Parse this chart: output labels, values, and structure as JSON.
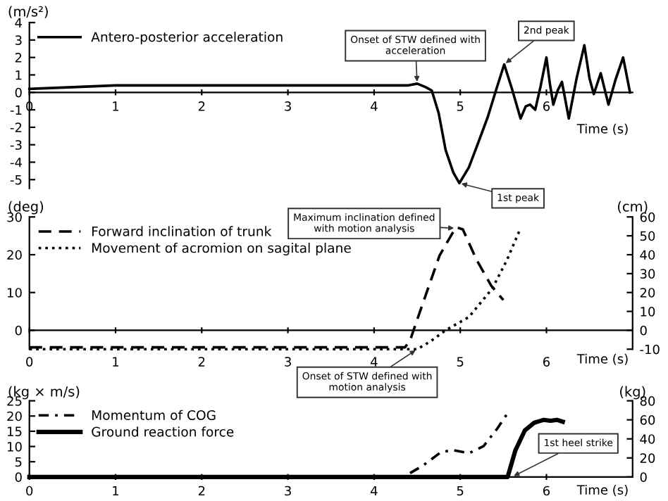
{
  "chart_data": [
    {
      "type": "line",
      "ylabel": "(m/s²)",
      "xlabel": "Time (s)",
      "xlim": [
        0,
        7
      ],
      "xticks": [
        0,
        1,
        2,
        3,
        4,
        5,
        6
      ],
      "ylim": [
        -5.5,
        4
      ],
      "yticks": [
        -5,
        -4,
        -3,
        -2,
        -1,
        0,
        1,
        2,
        3,
        4
      ],
      "grid": false,
      "legend": "top left",
      "series": [
        {
          "name": "Antero-posterior acceleration",
          "color": "#000000",
          "line_style": "solid",
          "x": [
            0,
            0.5,
            1,
            1.5,
            2,
            2.5,
            3,
            3.5,
            4,
            4.4,
            4.5,
            4.6,
            4.67,
            4.75,
            4.83,
            4.92,
            4.99,
            5.1,
            5.2,
            5.32,
            5.42,
            5.51,
            5.6,
            5.7,
            5.76,
            5.81,
            5.87,
            5.93,
            6.0,
            6.04,
            6.08,
            6.13,
            6.18,
            6.26,
            6.35,
            6.44,
            6.5,
            6.55,
            6.63,
            6.72,
            6.8,
            6.89,
            6.97
          ],
          "values": [
            0.2,
            0.3,
            0.4,
            0.4,
            0.4,
            0.4,
            0.4,
            0.4,
            0.4,
            0.4,
            0.5,
            0.3,
            0.1,
            -1.2,
            -3.3,
            -4.6,
            -5.2,
            -4.3,
            -3.0,
            -1.4,
            0.2,
            1.6,
            0.2,
            -1.5,
            -0.8,
            -0.7,
            -1.0,
            0.3,
            2.0,
            0.5,
            -0.7,
            0.1,
            0.6,
            -1.5,
            0.8,
            2.7,
            0.8,
            -0.1,
            1.1,
            -0.7,
            0.7,
            2.0,
            0
          ]
        }
      ],
      "annotations": [
        {
          "text": "Onset of STW defined with acceleration",
          "x": 4.5,
          "y": 0.5
        },
        {
          "text": "2nd peak",
          "x": 5.51,
          "y": 1.6
        },
        {
          "text": "1st peak",
          "x": 4.99,
          "y": -5.2
        }
      ]
    },
    {
      "type": "line",
      "ylabel": "(deg)",
      "y2label": "(cm)",
      "xlabel": "Time (s)",
      "xlim": [
        0,
        7
      ],
      "xticks": [
        0,
        1,
        2,
        3,
        4,
        5,
        6
      ],
      "ylim": [
        -5,
        30
      ],
      "yticks": [
        0,
        10,
        20,
        30
      ],
      "y2lim": [
        -10,
        60
      ],
      "y2ticks": [
        -10,
        0,
        10,
        20,
        30,
        40,
        50,
        60
      ],
      "grid": false,
      "legend": "top left",
      "series": [
        {
          "name": "Forward inclination of trunk",
          "color": "#000000",
          "line_style": "dashed",
          "x": [
            0,
            1,
            2,
            3,
            4,
            4.36,
            4.42,
            4.57,
            4.76,
            4.95,
            5.03,
            5.19,
            5.36,
            5.5
          ],
          "values": [
            -4.5,
            -4.5,
            -4.5,
            -4.5,
            -4.5,
            -4.5,
            -2.5,
            7.4,
            19.8,
            27.3,
            26.7,
            18.6,
            11.8,
            8
          ]
        },
        {
          "name": "Movement of acromion on sagital plane",
          "color": "#000000",
          "line_style": "dotted",
          "axis": "y2",
          "x": [
            0,
            1,
            2,
            3,
            4,
            4.5,
            4.65,
            4.83,
            5.1,
            5.37,
            5.54,
            5.69
          ],
          "values": [
            -10,
            -10,
            -10,
            -10,
            -10,
            -10,
            -6,
            0,
            7,
            22,
            37,
            53
          ]
        }
      ],
      "annotations": [
        {
          "text": "Maximum inclination defined with motion analysis",
          "x": 4.95,
          "y": 27
        },
        {
          "text": "Onset of STW defined with motion analysis",
          "x": 4.5,
          "y": -5
        }
      ]
    },
    {
      "type": "line",
      "ylabel": "(kg × m/s)",
      "y2label": "(kg)",
      "xlabel": "Time (s)",
      "xlim": [
        0,
        7
      ],
      "xticks": [
        0,
        1,
        2,
        3,
        4,
        5,
        6
      ],
      "ylim": [
        0,
        25
      ],
      "yticks": [
        0,
        5,
        10,
        15,
        20,
        25
      ],
      "y2lim": [
        0,
        80
      ],
      "y2ticks": [
        0,
        20,
        40,
        60,
        80
      ],
      "grid": false,
      "legend": "top left",
      "series": [
        {
          "name": "Momentum of COG",
          "color": "#000000",
          "line_style": "dashdot",
          "x": [
            0,
            1,
            2,
            3,
            4,
            4.34,
            4.56,
            4.78,
            4.92,
            5.1,
            5.27,
            5.43,
            5.55
          ],
          "values": [
            0,
            0,
            0,
            0,
            0,
            0,
            3.6,
            8.2,
            8.8,
            7.8,
            10.1,
            15.9,
            21
          ]
        },
        {
          "name": "Ground reaction force",
          "color": "#000000",
          "line_style": "solid",
          "axis": "y2",
          "x": [
            0,
            1,
            2,
            3,
            4,
            5,
            5.55,
            5.64,
            5.75,
            5.86,
            5.97,
            6.05,
            6.12,
            6.19
          ],
          "values": [
            0,
            0,
            0,
            0,
            0,
            0,
            0,
            28,
            49,
            57,
            60,
            59,
            60,
            58
          ]
        }
      ],
      "annotations": [
        {
          "text": "1st heel strike",
          "x": 5.6,
          "y": 0
        }
      ]
    }
  ]
}
